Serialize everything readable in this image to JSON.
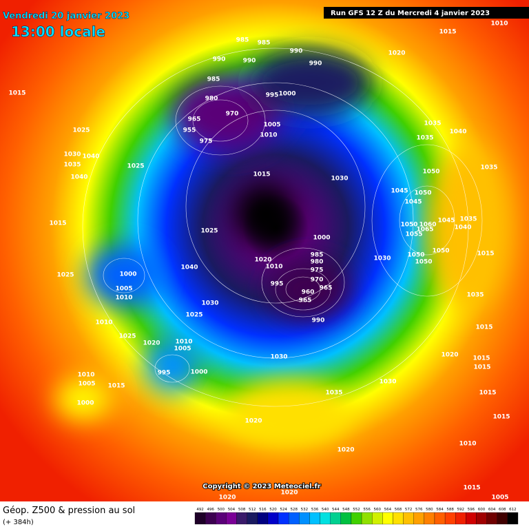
{
  "header": {
    "date": "Vendredi 20 janvier 2023",
    "time": "13:00 locale",
    "run": "Run GFS 12 Z du Mercredi 4 janvier 2023"
  },
  "map": {
    "isobar_labels": [
      985,
      985,
      990,
      990,
      990,
      990,
      1020,
      1015,
      1010,
      1015,
      985,
      995,
      1000,
      980,
      970,
      965,
      955,
      975,
      1005,
      1010,
      1025,
      1035,
      1040,
      1035,
      1030,
      1040,
      1035,
      1025,
      1040,
      1015,
      1030,
      1050,
      1035,
      1045,
      1050,
      1045,
      1015,
      1025,
      1045,
      1035,
      1050,
      1060,
      1040,
      1065,
      1055,
      1000,
      985,
      980,
      975,
      1020,
      1010,
      1030,
      1050,
      1050,
      1050,
      1015,
      1000,
      1040,
      1025,
      970,
      995,
      965,
      1005,
      1010,
      960,
      965,
      1035,
      1030,
      1010,
      990,
      1025,
      1025,
      1015,
      1020,
      1010,
      1005,
      1030,
      1020,
      1015,
      995,
      1000,
      1015,
      1010,
      1005,
      1030,
      1015,
      1035,
      1015,
      1000,
      1020,
      1015,
      1010,
      1020,
      1015,
      1020,
      1020,
      1005
    ]
  },
  "footer": {
    "title": "Géop. Z500 & pression au sol",
    "lead_time": "(+ 384h)",
    "copyright": "Copyright © 2023 Meteociel.fr"
  },
  "colorbar": {
    "levels": [
      492,
      496,
      500,
      504,
      508,
      512,
      516,
      520,
      524,
      528,
      532,
      536,
      540,
      544,
      548,
      552,
      556,
      560,
      564,
      568,
      572,
      576,
      580,
      584,
      588,
      592,
      596,
      600,
      604,
      608,
      612
    ],
    "colors": [
      "#1e0028",
      "#3c0050",
      "#5a0078",
      "#7a0096",
      "#3a1a6a",
      "#1a1a60",
      "#000080",
      "#0000c8",
      "#0030ff",
      "#0060ff",
      "#0090ff",
      "#00c0ff",
      "#00e0e0",
      "#00d090",
      "#00c040",
      "#40d000",
      "#90e000",
      "#d0f000",
      "#ffff00",
      "#ffe000",
      "#ffc000",
      "#ffa000",
      "#ff8000",
      "#ff6000",
      "#ff4000",
      "#f02000",
      "#d00000",
      "#a00000",
      "#700000",
      "#400000",
      "#000000"
    ]
  }
}
